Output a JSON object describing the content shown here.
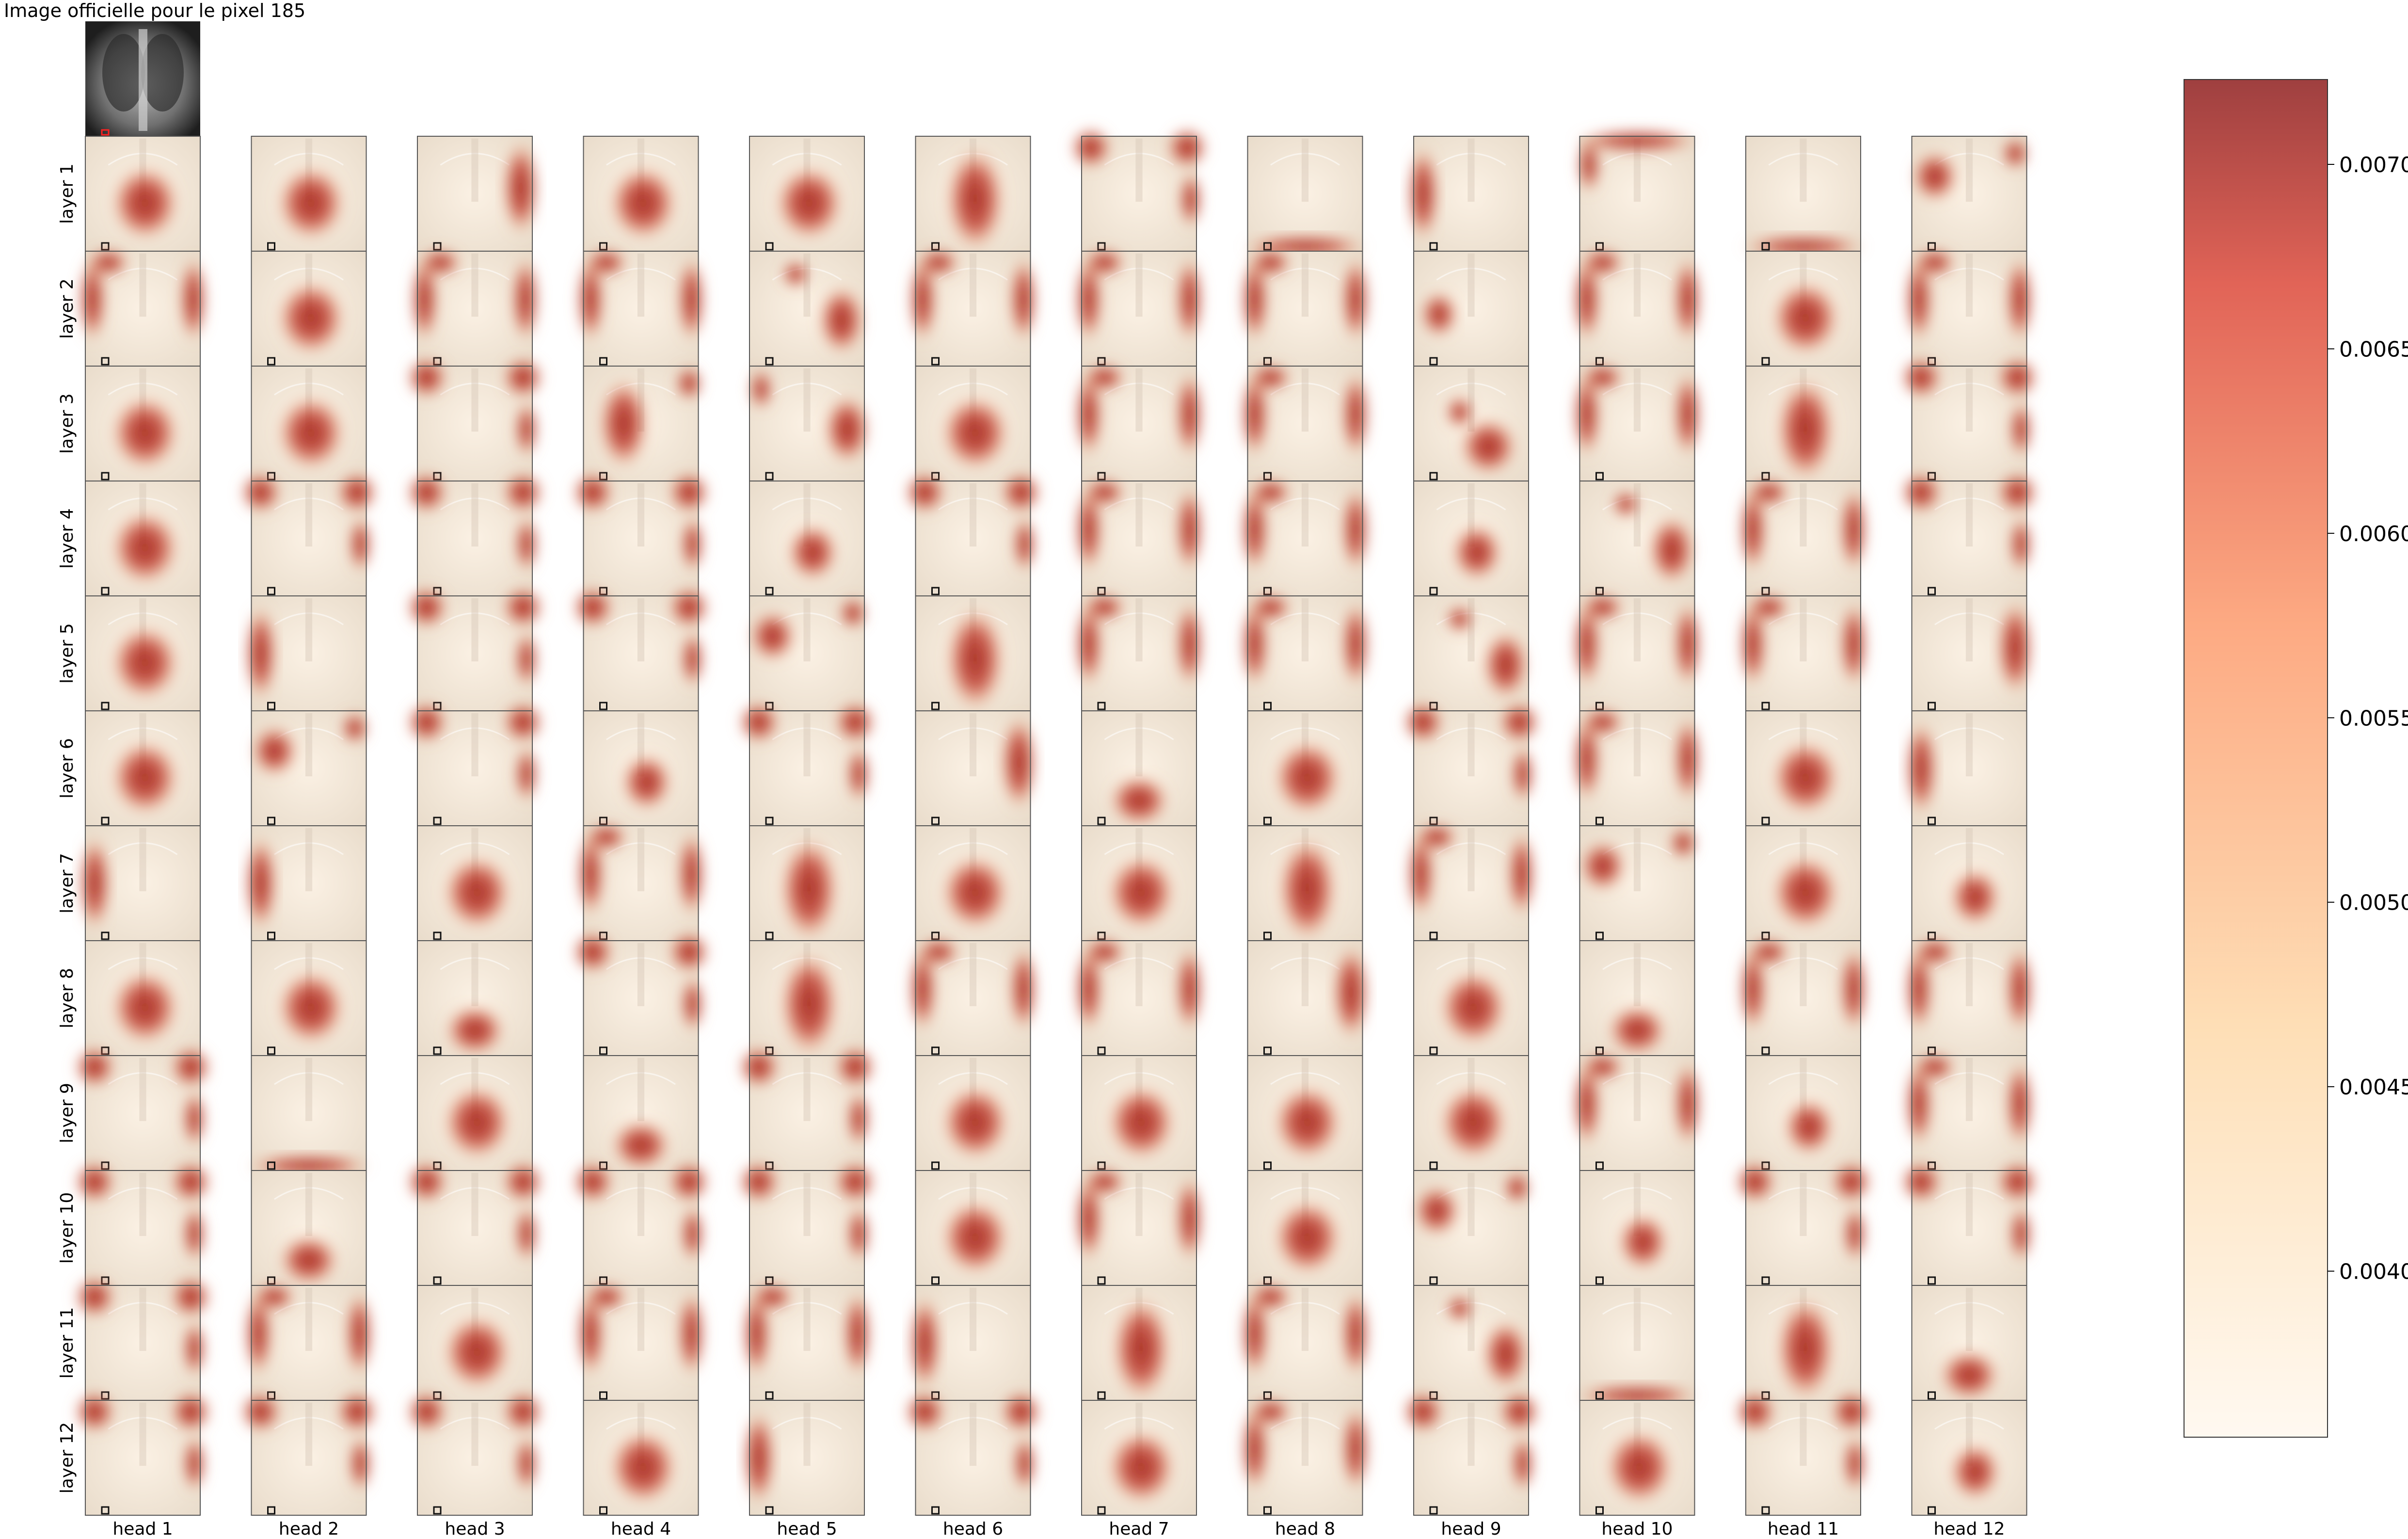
{
  "chart_data": {
    "type": "heatmap",
    "title": "Image officielle pour le pixel 185",
    "row_labels": [
      "layer 1",
      "layer 2",
      "layer 3",
      "layer 4",
      "layer 5",
      "layer 6",
      "layer 7",
      "layer 8",
      "layer 9",
      "layer 10",
      "layer 11",
      "layer 12"
    ],
    "col_labels": [
      "head 1",
      "head 2",
      "head 3",
      "head 4",
      "head 5",
      "head 6",
      "head 7",
      "head 8",
      "head 9",
      "head 10",
      "head 11",
      "head 12"
    ],
    "patterns": [
      [
        "heart",
        "heart",
        "right",
        "heart",
        "heart",
        "centerTall",
        "corners",
        "bottomBand",
        "leftEdge",
        "topEdge",
        "bottomBand",
        "upperLeft"
      ],
      [
        "edges",
        "heart",
        "edges",
        "edges",
        "rightDiag",
        "edges",
        "edges",
        "edges",
        "leftBlob",
        "edges",
        "heart",
        "edges"
      ],
      [
        "heart",
        "heart",
        "corners",
        "leftTall",
        "rightBlob",
        "heart",
        "edges",
        "edges",
        "lowRight",
        "edges",
        "centerTall",
        "corners"
      ],
      [
        "heart",
        "corners",
        "corners",
        "corners",
        "smallHeart",
        "corners",
        "edges",
        "edges",
        "smallHeart",
        "rightDiag",
        "edges",
        "corners"
      ],
      [
        "heart",
        "leftEdge",
        "corners",
        "corners",
        "upperLeft",
        "centerTall",
        "edges",
        "edges",
        "rightDiag",
        "edges",
        "edges",
        "right"
      ],
      [
        "heart",
        "upperLeft",
        "corners",
        "smallHeart",
        "corners",
        "right",
        "lowCenter",
        "heart",
        "corners",
        "edges",
        "heart",
        "leftEdge"
      ],
      [
        "leftEdge",
        "leftEdge",
        "heart",
        "edges",
        "centerTall",
        "heart",
        "heart",
        "centerTall",
        "edges",
        "upperLeft",
        "heart",
        "smallHeart"
      ],
      [
        "heart",
        "heart",
        "lowCenter",
        "corners",
        "centerTall",
        "edges",
        "edges",
        "right",
        "heart",
        "lowCenter",
        "edges",
        "edges"
      ],
      [
        "corners",
        "bottomBand",
        "heart",
        "lowCenter",
        "corners",
        "heart",
        "heart",
        "heart",
        "heart",
        "edges",
        "smallHeart",
        "edges"
      ],
      [
        "corners",
        "lowCenter",
        "corners",
        "corners",
        "corners",
        "heart",
        "edges",
        "heart",
        "upperLeft",
        "smallHeart",
        "corners",
        "corners"
      ],
      [
        "corners",
        "edges",
        "heart",
        "edges",
        "edges",
        "leftEdge",
        "centerTall",
        "edges",
        "rightDiag",
        "bottomBand",
        "centerTall",
        "lowCenter"
      ],
      [
        "corners",
        "corners",
        "corners",
        "heart",
        "leftEdge",
        "corners",
        "heart",
        "edges",
        "corners",
        "heart",
        "corners",
        "smallHeart"
      ]
    ],
    "colorbar": {
      "colormap": "OrRd",
      "min": 0.00355,
      "max": 0.00723,
      "ticks": [
        "0.0040",
        "0.0045",
        "0.0050",
        "0.0055",
        "0.0060",
        "0.0065",
        "0.0070"
      ],
      "tick_values": [
        0.004,
        0.0045,
        0.005,
        0.0055,
        0.006,
        0.0065,
        0.007
      ],
      "colors": [
        "#fff7ec",
        "#fdd49e",
        "#fc8d59",
        "#d7301f",
        "#7f0000"
      ]
    },
    "grid": false,
    "legend": "colorbar-right"
  }
}
